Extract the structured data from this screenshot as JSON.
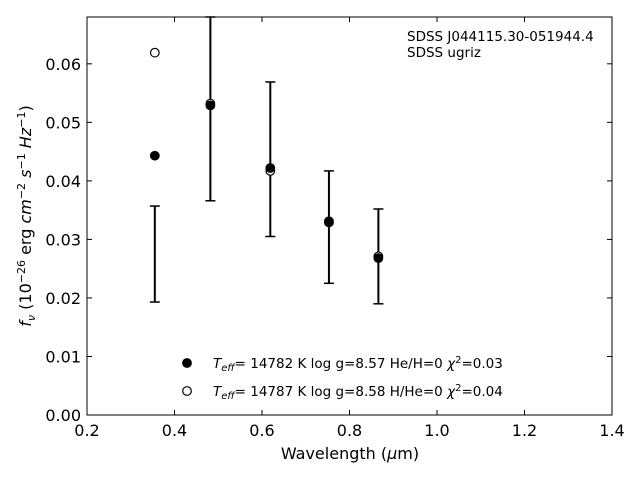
{
  "chart_data": {
    "type": "scatter",
    "title": "",
    "xlabel": "Wavelength (µm)",
    "ylabel": "f_ν (10⁻²⁶ erg cm⁻² s⁻¹ Hz⁻¹)",
    "xlim": [
      0.2,
      1.4
    ],
    "ylim": [
      0.0,
      0.068
    ],
    "x_ticks": [
      0.2,
      0.4,
      0.6,
      0.8,
      1.0,
      1.2,
      1.4
    ],
    "x_tick_labels": [
      "0.2",
      "0.4",
      "0.6",
      "0.8",
      "1.0",
      "1.2",
      "1.4"
    ],
    "y_ticks": [
      0.0,
      0.01,
      0.02,
      0.03,
      0.04,
      0.05,
      0.06
    ],
    "y_tick_labels": [
      "0.00",
      "0.01",
      "0.02",
      "0.03",
      "0.04",
      "0.05",
      "0.06"
    ],
    "grid": false,
    "annotation": [
      "SDSS J044115.30-051944.4",
      "SDSS ugriz"
    ],
    "observed": {
      "x": [
        0.355,
        0.482,
        0.619,
        0.753,
        0.866
      ],
      "y_low": [
        0.0193,
        0.0366,
        0.0305,
        0.0225,
        0.019
      ],
      "y_high": [
        0.0357,
        0.068,
        0.0569,
        0.0417,
        0.0352
      ]
    },
    "series": [
      {
        "name": "T_eff= 14782 K  log g=8.57  He/H=0  χ²=0.03",
        "marker": "filled-circle",
        "x": [
          0.355,
          0.482,
          0.619,
          0.753,
          0.866
        ],
        "y": [
          0.0443,
          0.0529,
          0.0422,
          0.0331,
          0.0268
        ]
      },
      {
        "name": "T_eff= 14787 K  log g=8.58  H/He=0  χ²=0.04",
        "marker": "open-circle",
        "x": [
          0.355,
          0.482,
          0.619,
          0.753,
          0.866
        ],
        "y": [
          0.0619,
          0.0532,
          0.0417,
          0.0329,
          0.0271
        ]
      }
    ],
    "legend_placement": "lower-center",
    "colors": {
      "marker": "#000000",
      "axis": "#000000",
      "background": "#ffffff"
    }
  }
}
